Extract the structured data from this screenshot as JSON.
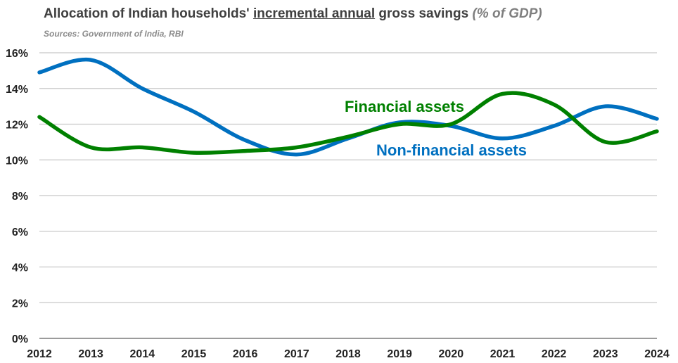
{
  "title": {
    "part1": "Allocation of Indian households' ",
    "underlined": "incremental annual",
    "part2": " gross savings ",
    "unit": "(% of GDP)"
  },
  "source": "Sources: Government of India, RBI",
  "chart_data": {
    "type": "line",
    "x": [
      2012,
      2013,
      2014,
      2015,
      2016,
      2017,
      2018,
      2019,
      2020,
      2021,
      2022,
      2023,
      2024
    ],
    "xticks": [
      "2012",
      "2013",
      "2014",
      "2015",
      "2016",
      "2017",
      "2018",
      "2019",
      "2020",
      "2021",
      "2022",
      "2023",
      "2024"
    ],
    "ylim": [
      0,
      16
    ],
    "yticks": [
      0,
      2,
      4,
      6,
      8,
      10,
      12,
      14,
      16
    ],
    "ytick_labels": [
      "0%",
      "2%",
      "4%",
      "6%",
      "8%",
      "10%",
      "12%",
      "14%",
      "16%"
    ],
    "grid": true,
    "series": [
      {
        "name": "Non-financial assets",
        "color": "#0070c0",
        "values": [
          14.9,
          15.6,
          14.0,
          12.7,
          11.1,
          10.3,
          11.2,
          12.1,
          11.9,
          11.2,
          11.9,
          13.0,
          12.3
        ]
      },
      {
        "name": "Financial assets",
        "color": "#008000",
        "values": [
          12.4,
          10.7,
          10.7,
          10.4,
          10.5,
          10.7,
          11.3,
          12.0,
          12.0,
          13.7,
          13.1,
          11.0,
          11.6
        ]
      }
    ]
  }
}
